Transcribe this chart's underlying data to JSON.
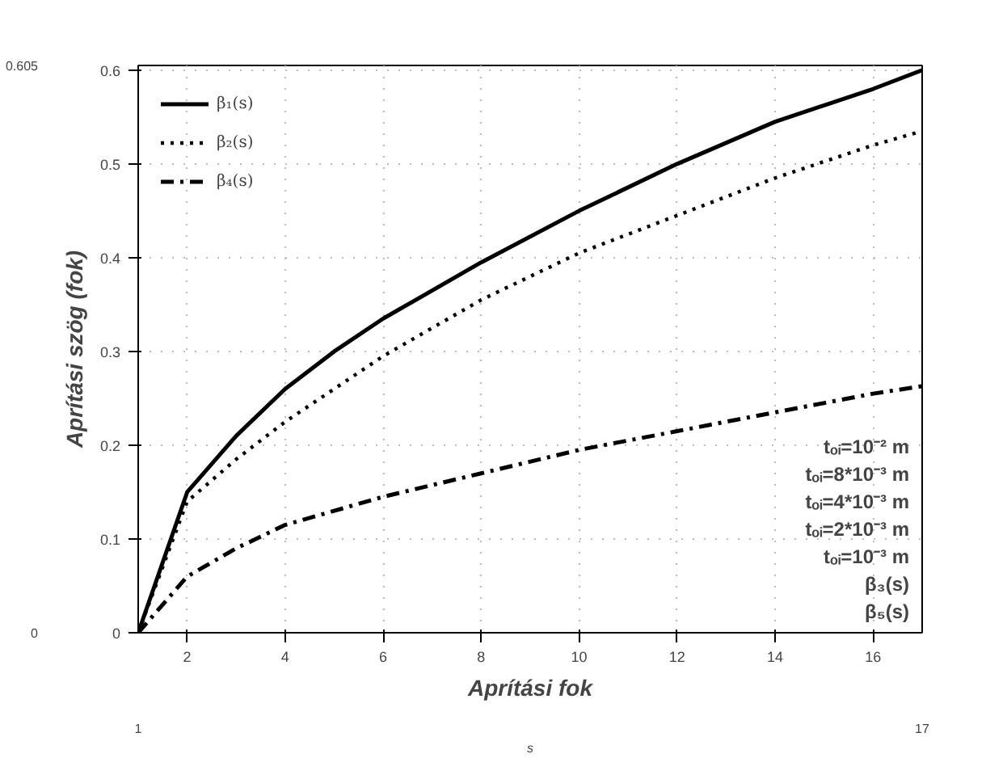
{
  "chart_data": {
    "type": "line",
    "xlabel": "Aprítási fok",
    "ylabel": "Aprítási szög (fok)",
    "x2label": "s",
    "x": [
      1,
      2,
      3,
      4,
      5,
      6,
      8,
      10,
      12,
      14,
      16,
      17
    ],
    "xlim": [
      1,
      17
    ],
    "xticks": [
      2,
      4,
      6,
      8,
      10,
      12,
      14,
      16
    ],
    "ylim": [
      0,
      0.605
    ],
    "yticks": [
      0,
      0.1,
      0.2,
      0.3,
      0.4,
      0.5,
      0.6
    ],
    "x2lim": [
      1,
      17
    ],
    "x2ticks": [
      1,
      17
    ],
    "y2lim": [
      0,
      0.605
    ],
    "y2ticks": [
      0,
      0.605
    ],
    "grid": true,
    "legend": "top left",
    "series": [
      {
        "name": "β₁(s)",
        "color": "#000000",
        "line_style": "solid",
        "values": [
          0,
          0.15,
          0.21,
          0.26,
          0.3,
          0.335,
          0.395,
          0.45,
          0.5,
          0.545,
          0.58,
          0.6
        ]
      },
      {
        "name": "β₂(s)",
        "color": "#000000",
        "line_style": "dotted",
        "values": [
          0,
          0.14,
          0.185,
          0.225,
          0.26,
          0.295,
          0.355,
          0.405,
          0.445,
          0.485,
          0.52,
          0.535
        ]
      },
      {
        "name": "β₄(s)",
        "color": "#000000",
        "line_style": "dashdot",
        "values": [
          0,
          0.06,
          0.09,
          0.115,
          0.13,
          0.145,
          0.17,
          0.195,
          0.215,
          0.235,
          0.255,
          0.263
        ]
      }
    ],
    "annotations": [
      "tₒᵢ=10⁻² m",
      "tₒᵢ=8*10⁻³ m",
      "tₒᵢ=4*10⁻³ m",
      "tₒᵢ=2*10⁻³ m",
      "tₒᵢ=10⁻³ m",
      "β₃(s)",
      "β₅(s)"
    ]
  }
}
